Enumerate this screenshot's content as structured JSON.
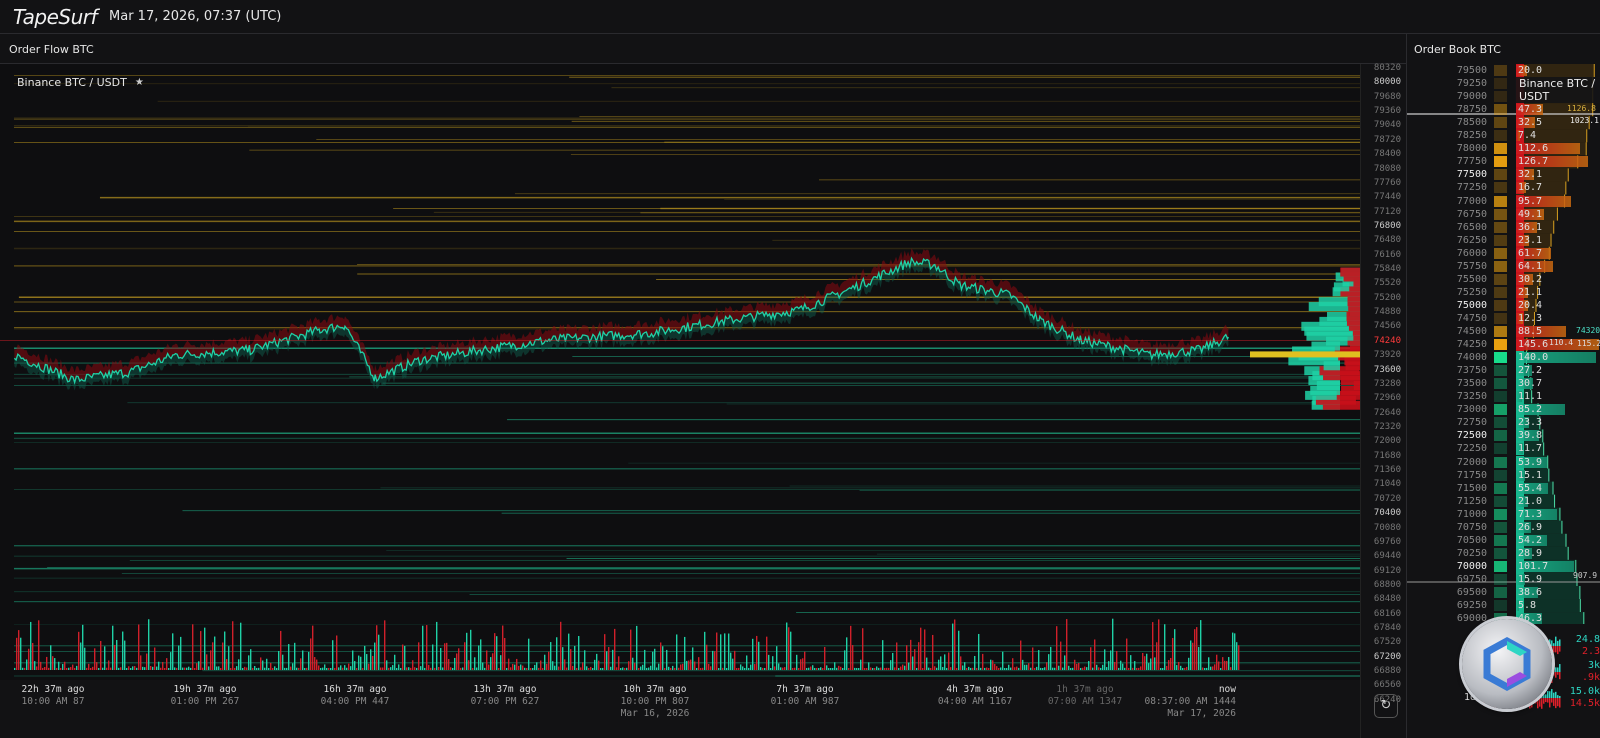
{
  "header": {
    "logo": "TapeSurf",
    "datetime": "Mar 17, 2026, 07:37 (UTC)"
  },
  "order_flow": {
    "title": "Order Flow BTC",
    "instrument": "Binance BTC / USDT",
    "pin_icon": "pin-icon"
  },
  "order_book": {
    "title": "Order Book BTC",
    "instrument": "Binance BTC / USDT",
    "asks": [
      [
        "79500",
        "20.0"
      ],
      [
        "79250",
        ""
      ],
      [
        "79000",
        ""
      ],
      [
        "78750",
        "47.3"
      ],
      [
        "78500",
        "32.5"
      ],
      [
        "78250",
        "7.4"
      ],
      [
        "78000",
        "112.6"
      ],
      [
        "77750",
        "126.7"
      ],
      [
        "77500",
        "32.1"
      ],
      [
        "77250",
        "16.7"
      ],
      [
        "77000",
        "95.7"
      ],
      [
        "76750",
        "49.1"
      ],
      [
        "76500",
        "36.1"
      ],
      [
        "76250",
        "23.1"
      ],
      [
        "76000",
        "61.7"
      ],
      [
        "75750",
        "64.1"
      ],
      [
        "75500",
        "30.2"
      ],
      [
        "75250",
        "21.1"
      ],
      [
        "75000",
        "20.4"
      ],
      [
        "74750",
        "12.3"
      ],
      [
        "74500",
        "88.5"
      ],
      [
        "74250",
        "145.6"
      ]
    ],
    "bids": [
      [
        "74000",
        "140.0"
      ],
      [
        "73750",
        "27.2"
      ],
      [
        "73500",
        "30.7"
      ],
      [
        "73250",
        "11.1"
      ],
      [
        "73000",
        "85.2"
      ],
      [
        "72750",
        "23.3"
      ],
      [
        "72500",
        "39.8"
      ],
      [
        "72250",
        "11.7"
      ],
      [
        "72000",
        "53.9"
      ],
      [
        "71750",
        "15.1"
      ],
      [
        "71500",
        "55.4"
      ],
      [
        "71250",
        "21.0"
      ],
      [
        "71000",
        "71.3"
      ],
      [
        "70750",
        "26.9"
      ],
      [
        "70500",
        "54.2"
      ],
      [
        "70250",
        "28.9"
      ],
      [
        "70000",
        "101.7"
      ],
      [
        "69750",
        "15.9"
      ],
      [
        "69500",
        "38.6"
      ],
      [
        "69250",
        "5.8"
      ],
      [
        "69000",
        "46.3"
      ]
    ],
    "cumulative": {
      "ask_top": "1126.8",
      "ask_line": "1023.1",
      "mid_ask": "110.4",
      "mid_bid": "115.2",
      "mid_price": "74320",
      "bid_line": "907.9"
    },
    "colors": {
      "ask": "#e0202a",
      "ask_heat": "#e8a010",
      "bid": "#18c79a"
    }
  },
  "stats": {
    "rows": [
      {
        "tf": "1h",
        "buy": "24.8",
        "sell": "2.3"
      },
      {
        "tf": "4h",
        "buy": "3k",
        "sell": ".9k"
      },
      {
        "tf": "1d",
        "buy": "15.0k",
        "sell": "14.5k"
      }
    ],
    "refresh_icon": "refresh-icon"
  },
  "price_axis": {
    "labels": [
      "80320",
      "80000",
      "79680",
      "79360",
      "79040",
      "78720",
      "78400",
      "78080",
      "77760",
      "77440",
      "77120",
      "76800",
      "76480",
      "76160",
      "75840",
      "75520",
      "75200",
      "74880",
      "74560",
      "74240",
      "73920",
      "73600",
      "73280",
      "72960",
      "72640",
      "72320",
      "72000",
      "71680",
      "71360",
      "71040",
      "70720",
      "70400",
      "70080",
      "69760",
      "69440",
      "69120",
      "68800",
      "68480",
      "68160",
      "67840",
      "67520",
      "67200",
      "66880",
      "66560",
      "66240"
    ],
    "current": "74240"
  },
  "time_axis": [
    {
      "ago": "22h 37m ago",
      "time": "10:00 AM 87",
      "date": ""
    },
    {
      "ago": "19h 37m ago",
      "time": "01:00 PM 267",
      "date": ""
    },
    {
      "ago": "16h 37m ago",
      "time": "04:00 PM 447",
      "date": ""
    },
    {
      "ago": "13h 37m ago",
      "time": "07:00 PM 627",
      "date": ""
    },
    {
      "ago": "10h 37m ago",
      "time": "10:00 PM 807",
      "date": "Mar 16, 2026"
    },
    {
      "ago": "7h 37m ago",
      "time": "01:00 AM 987",
      "date": ""
    },
    {
      "ago": "4h 37m ago",
      "time": "04:00 AM 1167",
      "date": ""
    },
    {
      "ago": "1h 37m ago",
      "time": "07:00 AM 1347",
      "date": ""
    },
    {
      "ago": "now",
      "time": "08:37:00 AM 1444",
      "date": "Mar 17, 2026"
    }
  ],
  "chart_data": {
    "type": "line",
    "x_unit": "minute index",
    "y_unit": "USDT",
    "ylim": [
      66240,
      80320
    ],
    "xlim": [
      34,
      1444
    ],
    "price": [
      [
        34,
        73920
      ],
      [
        104,
        73362
      ],
      [
        168,
        73541
      ],
      [
        221,
        73920
      ],
      [
        308,
        74031
      ],
      [
        389,
        74477
      ],
      [
        418,
        74589
      ],
      [
        453,
        73407
      ],
      [
        505,
        73808
      ],
      [
        575,
        74031
      ],
      [
        656,
        74254
      ],
      [
        772,
        74410
      ],
      [
        865,
        74700
      ],
      [
        946,
        74923
      ],
      [
        1016,
        75481
      ],
      [
        1074,
        75994
      ],
      [
        1103,
        75927
      ],
      [
        1132,
        75481
      ],
      [
        1190,
        75258
      ],
      [
        1225,
        74700
      ],
      [
        1272,
        74254
      ],
      [
        1353,
        73920
      ],
      [
        1411,
        74031
      ],
      [
        1444,
        74320
      ]
    ],
    "colors": {
      "up": "#1fd1a6",
      "down": "#e0202a",
      "ask_levels": "#c8a020",
      "bid_levels": "#1fb58a"
    }
  }
}
